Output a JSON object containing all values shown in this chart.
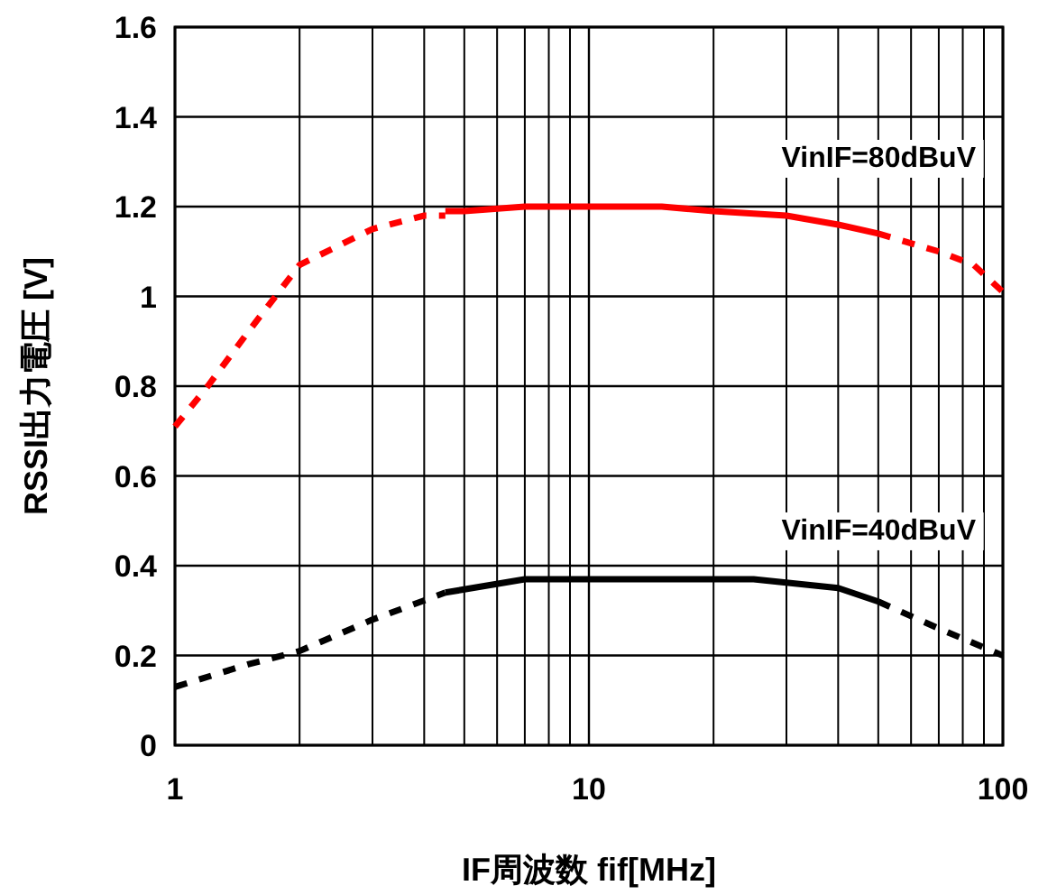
{
  "chart_data": {
    "type": "line",
    "xlabel": "IF周波数 fif[MHz]",
    "ylabel": "RSSI出力電圧 [V]",
    "log": "x",
    "grid": true,
    "marker": "none",
    "xlim": [
      1,
      100
    ],
    "xticks": [
      1,
      10,
      100
    ],
    "ylim": [
      0,
      1.6
    ],
    "yticks": [
      0,
      {
        "value": 0.2,
        "label": "0.2"
      },
      {
        "value": 0.4,
        "label": "0.4"
      },
      {
        "value": 0.6,
        "label": "0.6"
      },
      {
        "value": 0.8,
        "label": "0.8"
      },
      1,
      {
        "value": 1.2,
        "label": "1.2"
      },
      {
        "value": 1.4,
        "label": "1.4"
      },
      {
        "value": 1.6,
        "label": "1.6"
      }
    ],
    "series": [
      {
        "color": "#ff0000",
        "line_style": "dotted",
        "x": [
          1,
          1.2,
          1.5,
          2,
          3,
          4,
          4.5
        ],
        "values": [
          0.71,
          0.8,
          0.92,
          1.07,
          1.15,
          1.18,
          1.18
        ]
      },
      {
        "name": "VinIF=80dBuV",
        "color": "#ff0000",
        "line_style": "solid",
        "x": [
          4.5,
          5,
          7,
          10,
          15,
          20,
          30,
          40,
          50
        ],
        "values": [
          1.19,
          1.19,
          1.2,
          1.2,
          1.2,
          1.19,
          1.18,
          1.16,
          1.14
        ]
      },
      {
        "color": "#ff0000",
        "line_style": "dotted",
        "x": [
          50,
          70,
          85,
          100
        ],
        "values": [
          1.14,
          1.1,
          1.07,
          1.01
        ]
      },
      {
        "color": "#000000",
        "line_style": "dotted",
        "x": [
          1,
          1.5,
          2,
          3,
          4.5
        ],
        "values": [
          0.13,
          0.18,
          0.21,
          0.28,
          0.34
        ]
      },
      {
        "name": "VinIF=40dBuV",
        "color": "#000000",
        "line_style": "solid",
        "x": [
          4.5,
          7,
          10,
          25,
          40,
          50
        ],
        "values": [
          0.34,
          0.37,
          0.37,
          0.37,
          0.35,
          0.32
        ]
      },
      {
        "color": "#000000",
        "line_style": "dotted",
        "x": [
          50,
          70,
          100
        ],
        "values": [
          0.32,
          0.26,
          0.2
        ]
      }
    ]
  }
}
